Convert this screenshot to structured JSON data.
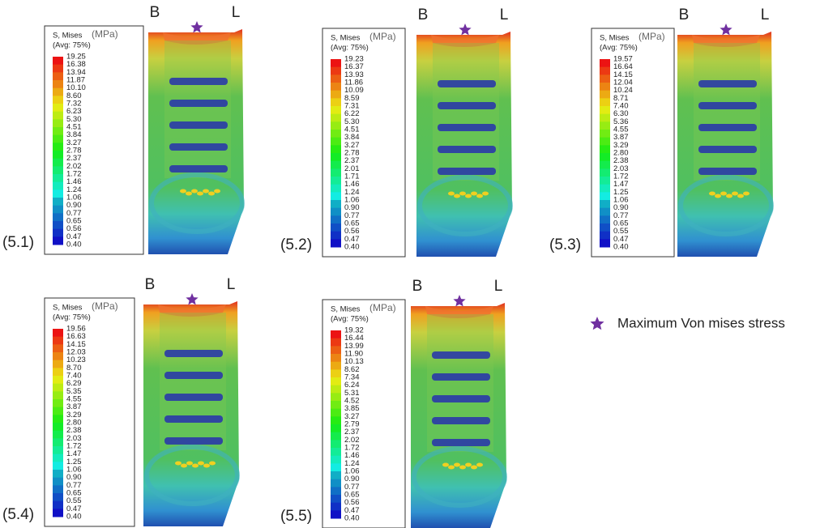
{
  "panels": [
    {
      "label": "(5.1)",
      "b": "B",
      "l": "L",
      "legend_title": "S, Mises",
      "unit": "(MPa)",
      "avg": "(Avg: 75%)",
      "values": [
        "19.25",
        "16.38",
        "13.94",
        "11.87",
        "10.10",
        "8.60",
        "7.32",
        "6.23",
        "5.30",
        "4.51",
        "3.84",
        "3.27",
        "2.78",
        "2.37",
        "2.02",
        "1.72",
        "1.46",
        "1.24",
        "1.06",
        "0.90",
        "0.77",
        "0.65",
        "0.56",
        "0.47",
        "0.40"
      ]
    },
    {
      "label": "(5.2)",
      "b": "B",
      "l": "L",
      "legend_title": "S, Mises",
      "unit": "(MPa)",
      "avg": "(Avg: 75%)",
      "values": [
        "19.23",
        "16.37",
        "13.93",
        "11.86",
        "10.09",
        "8.59",
        "7.31",
        "6.22",
        "5.30",
        "4.51",
        "3.84",
        "3.27",
        "2.78",
        "2.37",
        "2.01",
        "1.71",
        "1.46",
        "1.24",
        "1.06",
        "0.90",
        "0.77",
        "0.65",
        "0.56",
        "0.47",
        "0.40"
      ]
    },
    {
      "label": "(5.3)",
      "b": "B",
      "l": "L",
      "legend_title": "S, Mises",
      "unit": "(MPa)",
      "avg": "(Avg: 75%)",
      "values": [
        "19.57",
        "16.64",
        "14.15",
        "12.04",
        "10.24",
        "8.71",
        "7.40",
        "6.30",
        "5.36",
        "4.55",
        "3.87",
        "3.29",
        "2.80",
        "2.38",
        "2.03",
        "1.72",
        "1.47",
        "1.25",
        "1.06",
        "0.90",
        "0.77",
        "0.65",
        "0.55",
        "0.47",
        "0.40"
      ]
    },
    {
      "label": "(5.4)",
      "b": "B",
      "l": "L",
      "legend_title": "S, Mises",
      "unit": "(MPa)",
      "avg": "(Avg: 75%)",
      "values": [
        "19.56",
        "16.63",
        "14.15",
        "12.03",
        "10.23",
        "8.70",
        "7.40",
        "6.29",
        "5.35",
        "4.55",
        "3.87",
        "3.29",
        "2.80",
        "2.38",
        "2.03",
        "1.72",
        "1.47",
        "1.25",
        "1.06",
        "0.90",
        "0.77",
        "0.65",
        "0.55",
        "0.47",
        "0.40"
      ]
    },
    {
      "label": "(5.5)",
      "b": "B",
      "l": "L",
      "legend_title": "S, Mises",
      "unit": "(MPa)",
      "avg": "(Avg: 75%)",
      "values": [
        "19.32",
        "16.44",
        "13.99",
        "11.90",
        "10.13",
        "8.62",
        "7.34",
        "6.24",
        "5.31",
        "4.52",
        "3.85",
        "3.27",
        "2.79",
        "2.37",
        "2.02",
        "1.72",
        "1.46",
        "1.24",
        "1.06",
        "0.90",
        "0.77",
        "0.65",
        "0.56",
        "0.47",
        "0.40"
      ]
    }
  ],
  "key": {
    "text": "Maximum Von mises stress"
  }
}
